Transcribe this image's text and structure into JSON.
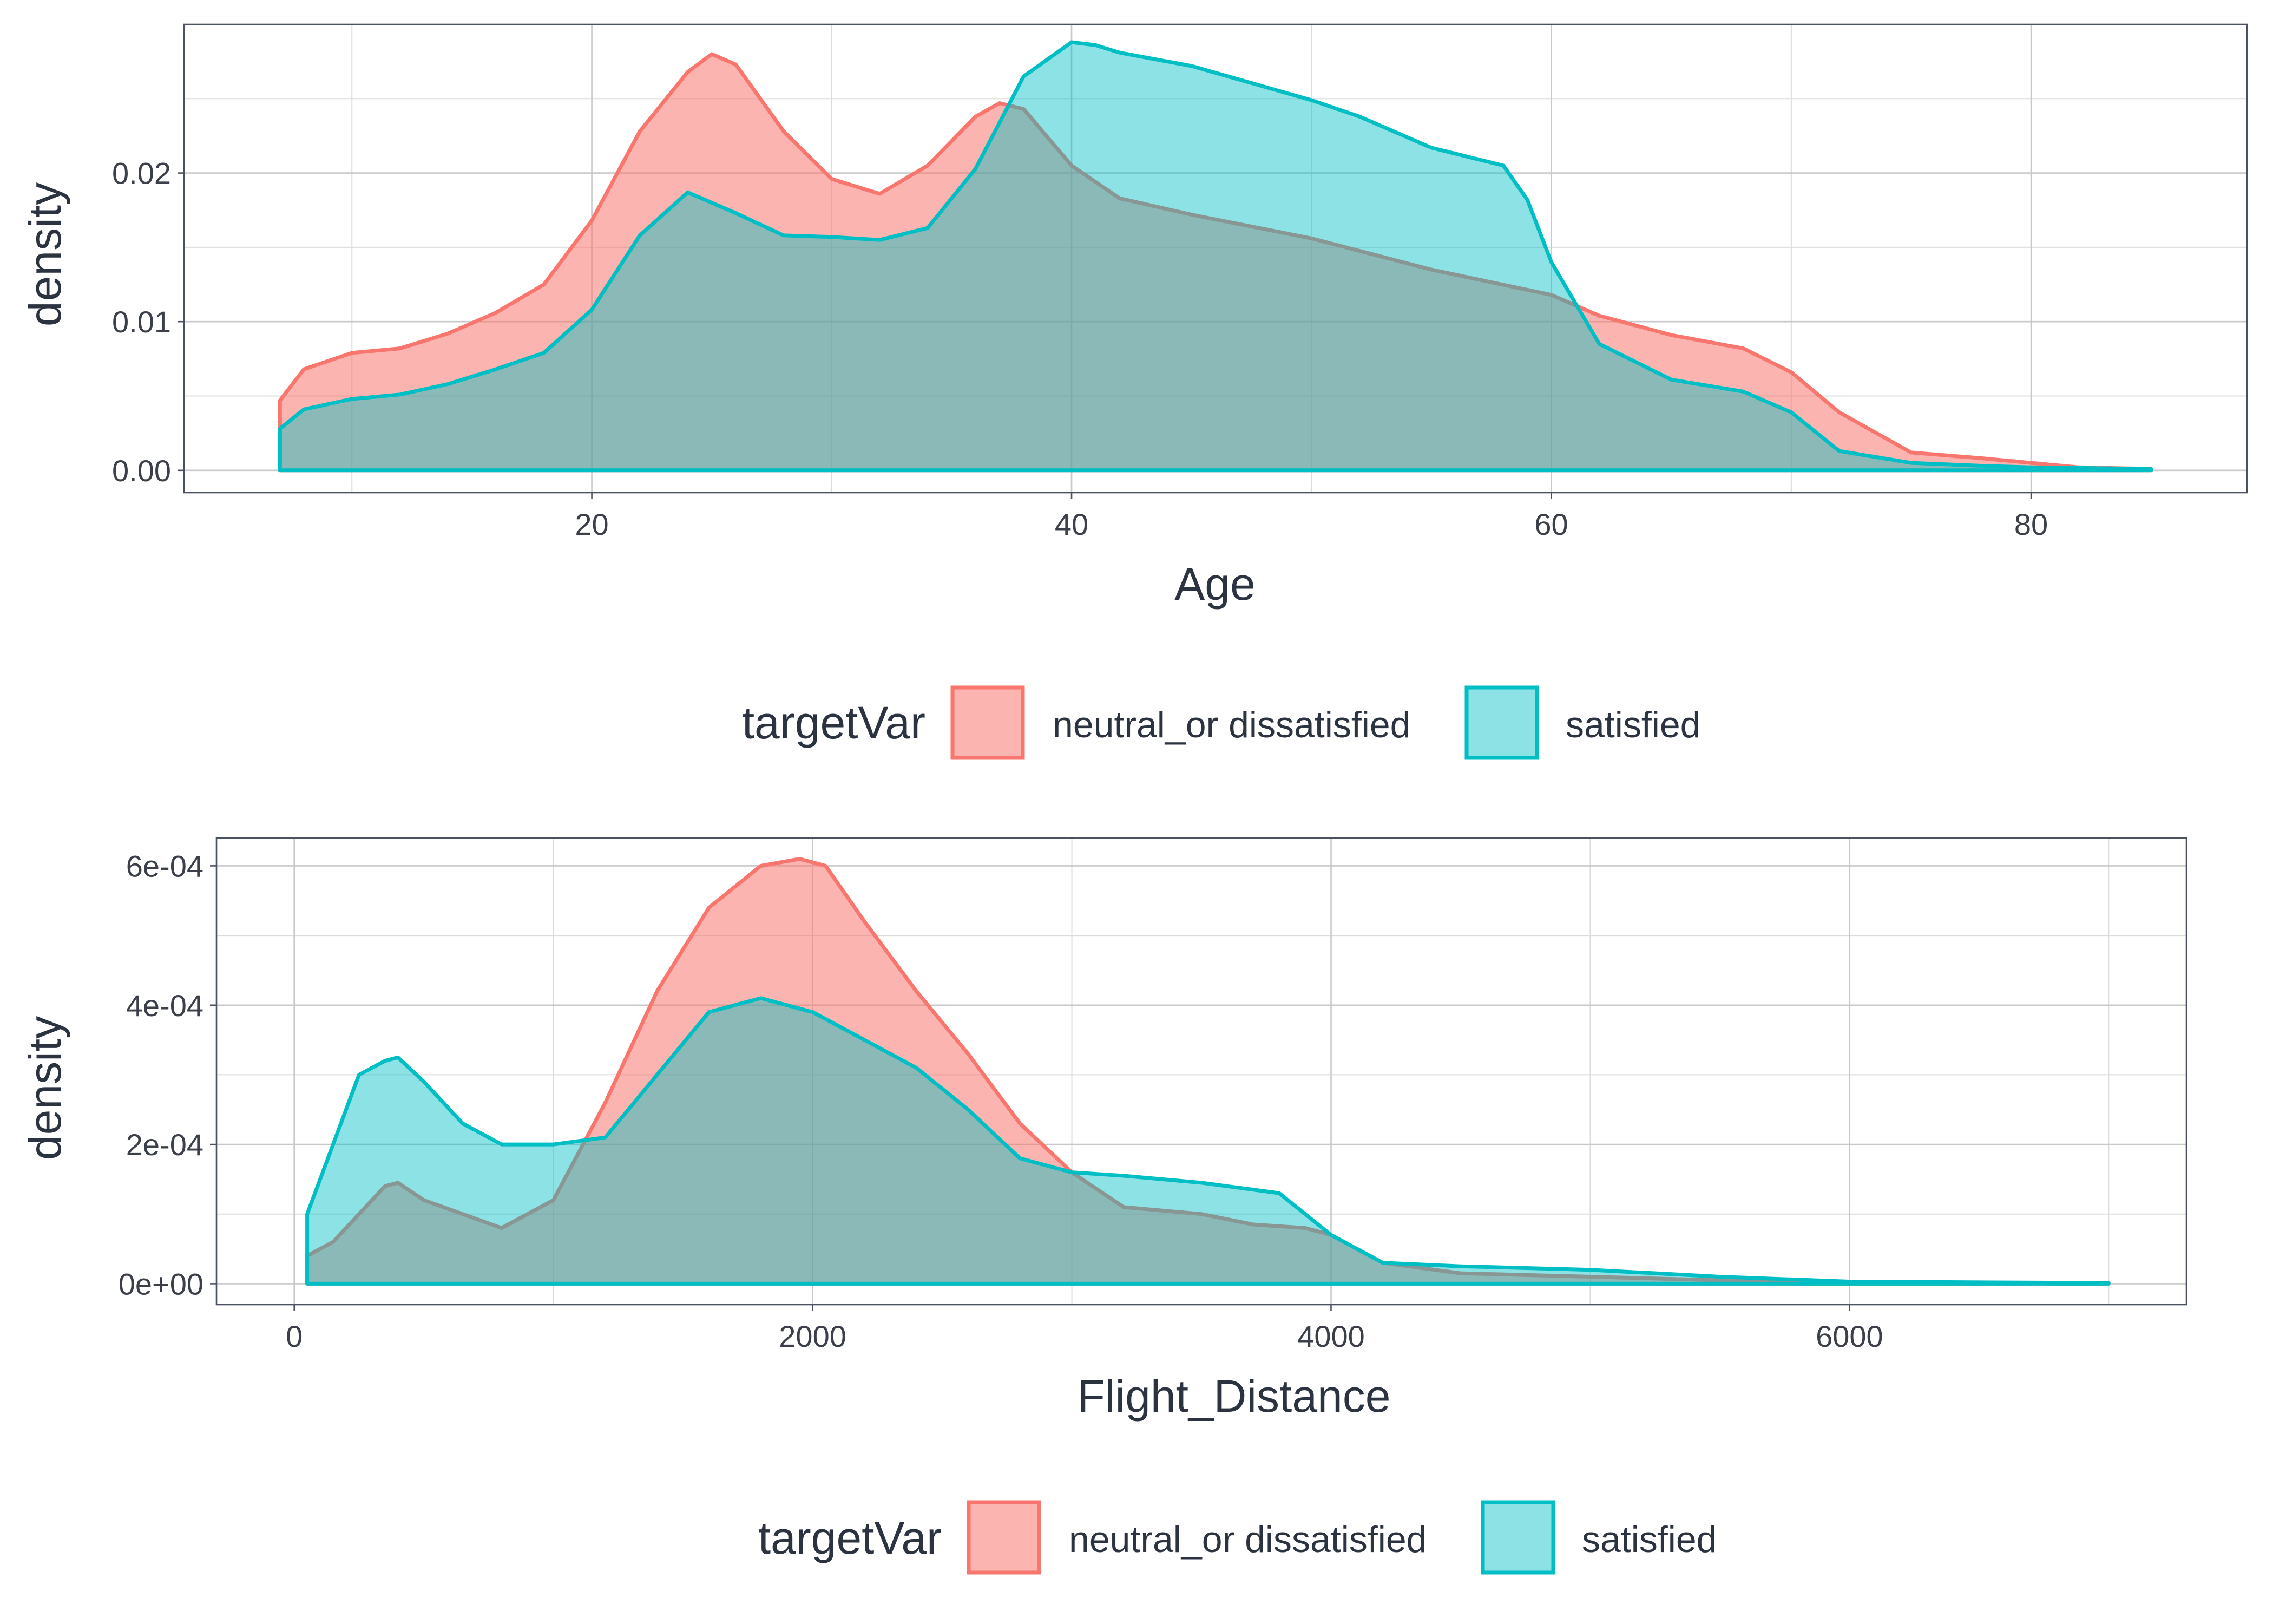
{
  "colors": {
    "neutral_or_dissatisfied": "#F8766D",
    "satisfied": "#00BFC4",
    "neutral_fill": "#F8766D",
    "satisfied_fill": "#00BFC4"
  },
  "chart_data": [
    {
      "type": "area",
      "subtype": "density",
      "xlabel": "Age",
      "ylabel": "density",
      "xlim": [
        3,
        89
      ],
      "ylim": [
        -0.0015,
        0.03
      ],
      "x_ticks": [
        20,
        40,
        60,
        80
      ],
      "x_tick_labels": [
        "20",
        "40",
        "60",
        "80"
      ],
      "y_ticks": [
        0,
        0.01,
        0.02
      ],
      "y_tick_labels": [
        "0.00",
        "0.01",
        "0.02"
      ],
      "grid": true,
      "legend": {
        "title": "targetVar",
        "position": "bottom",
        "labels": [
          "neutral_or dissatisfied",
          "satisfied"
        ]
      },
      "series": [
        {
          "name": "neutral_or dissatisfied",
          "x": [
            7,
            8,
            10,
            12,
            14,
            16,
            18,
            20,
            22,
            24,
            25,
            26,
            28,
            30,
            32,
            34,
            36,
            37,
            38,
            40,
            42,
            45,
            50,
            55,
            60,
            62,
            65,
            68,
            70,
            72,
            75,
            78,
            80,
            82,
            85
          ],
          "y": [
            0.0047,
            0.0068,
            0.0079,
            0.0082,
            0.0092,
            0.0106,
            0.0125,
            0.0168,
            0.0228,
            0.0268,
            0.028,
            0.0273,
            0.0228,
            0.0196,
            0.0186,
            0.0205,
            0.0238,
            0.0247,
            0.0243,
            0.0205,
            0.0183,
            0.0172,
            0.0156,
            0.0135,
            0.0118,
            0.0104,
            0.0091,
            0.0082,
            0.0066,
            0.0039,
            0.0012,
            0.0008,
            0.0005,
            0.0002,
            0.0001
          ]
        },
        {
          "name": "satisfied",
          "x": [
            7,
            8,
            10,
            12,
            14,
            16,
            18,
            20,
            22,
            24,
            26,
            28,
            30,
            32,
            34,
            36,
            38,
            40,
            41,
            42,
            45,
            50,
            52,
            55,
            58,
            59,
            60,
            62,
            65,
            68,
            70,
            72,
            75,
            78,
            80,
            85
          ],
          "y": [
            0.0028,
            0.0041,
            0.0048,
            0.0051,
            0.0058,
            0.0068,
            0.0079,
            0.0108,
            0.0158,
            0.0187,
            0.0173,
            0.0158,
            0.0157,
            0.0155,
            0.0163,
            0.0203,
            0.0265,
            0.0288,
            0.0286,
            0.0281,
            0.0272,
            0.0249,
            0.0238,
            0.0217,
            0.0205,
            0.0182,
            0.014,
            0.0085,
            0.0061,
            0.0053,
            0.0039,
            0.0013,
            0.0005,
            0.0003,
            0.0002,
            0.0001
          ]
        }
      ]
    },
    {
      "type": "area",
      "subtype": "density",
      "xlabel": "Flight_Distance",
      "ylabel": "density",
      "xlim": [
        -300,
        7300
      ],
      "ylim": [
        -3e-05,
        0.00064
      ],
      "x_ticks": [
        0,
        2000,
        4000,
        6000
      ],
      "x_tick_labels": [
        "0",
        "2000",
        "4000",
        "6000"
      ],
      "y_ticks": [
        0,
        0.0002,
        0.0004,
        0.0006
      ],
      "y_tick_labels": [
        "0e+00",
        "2e-04",
        "4e-04",
        "6e-04"
      ],
      "grid": true,
      "legend": {
        "title": "targetVar",
        "position": "bottom",
        "labels": [
          "neutral_or dissatisfied",
          "satisfied"
        ]
      },
      "series": [
        {
          "name": "neutral_or dissatisfied",
          "x": [
            50,
            150,
            250,
            350,
            400,
            500,
            650,
            800,
            1000,
            1200,
            1400,
            1600,
            1800,
            1950,
            2050,
            2200,
            2400,
            2600,
            2800,
            3000,
            3200,
            3500,
            3700,
            3900,
            4000,
            4200,
            4500,
            5000,
            5500,
            6000,
            7000
          ],
          "y": [
            4e-05,
            6e-05,
            0.0001,
            0.00014,
            0.000145,
            0.00012,
            0.0001,
            8e-05,
            0.00012,
            0.00026,
            0.00042,
            0.00054,
            0.0006,
            0.00061,
            0.0006,
            0.00052,
            0.00042,
            0.00033,
            0.00023,
            0.00016,
            0.00011,
            0.0001,
            8.5e-05,
            8e-05,
            7e-05,
            3e-05,
            1.5e-05,
            1e-05,
            5e-06,
            2e-06,
            1e-06
          ]
        },
        {
          "name": "satisfied",
          "x": [
            50,
            150,
            250,
            350,
            400,
            500,
            650,
            800,
            1000,
            1200,
            1400,
            1600,
            1800,
            2000,
            2200,
            2400,
            2600,
            2800,
            3000,
            3200,
            3500,
            3800,
            4000,
            4200,
            4500,
            5000,
            5500,
            6000,
            7000
          ],
          "y": [
            0.0001,
            0.0002,
            0.0003,
            0.00032,
            0.000325,
            0.00029,
            0.00023,
            0.0002,
            0.0002,
            0.00021,
            0.0003,
            0.00039,
            0.00041,
            0.00039,
            0.00035,
            0.00031,
            0.00025,
            0.00018,
            0.00016,
            0.000155,
            0.000145,
            0.00013,
            7e-05,
            3e-05,
            2.5e-05,
            2e-05,
            1e-05,
            3e-06,
            1e-06
          ]
        }
      ]
    }
  ]
}
